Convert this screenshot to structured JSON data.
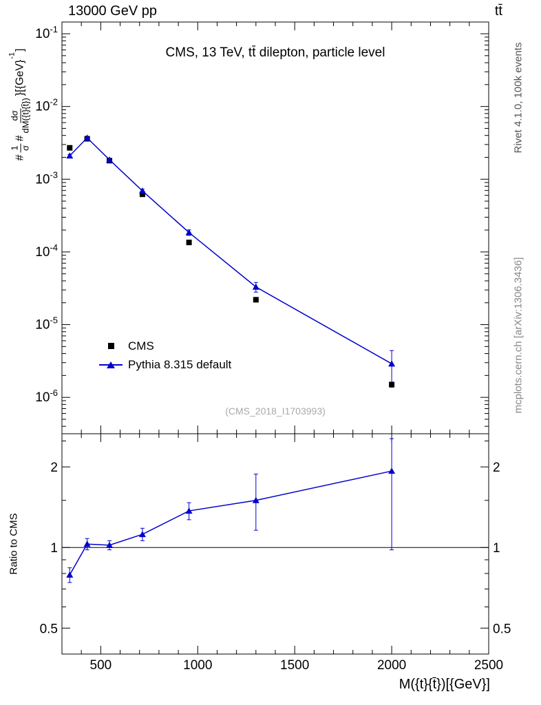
{
  "header": {
    "left": "13000 GeV pp",
    "right": "tt̄"
  },
  "title": "CMS, 13 TeV, tt̄ dilepton, particle level",
  "watermark": "(CMS_2018_I1703993)",
  "right_margin": {
    "top_label": "Rivet 4.1.0,  100k events",
    "bottom_label": "mcplots.cern.ch [arXiv:1306.3436]"
  },
  "ylabel_top": {
    "hash1": "#",
    "frac1_num": "1",
    "frac1_den": "σ",
    "hash2": "#",
    "frac2_num": "dσ",
    "frac2_den": "dM({t}{t̄})",
    "close": "}[{GeV}",
    "sup": "-1",
    "end": "]"
  },
  "ylabel_ratio": "Ratio to CMS",
  "xlabel": "M({t}{t̄})[{GeV}]",
  "legend": {
    "items": [
      {
        "label": "CMS",
        "marker": "square",
        "color": "#000000"
      },
      {
        "label": "Pythia 8.315 default",
        "marker": "triangle",
        "color": "#0000cc"
      }
    ]
  },
  "colors": {
    "cms": "#000000",
    "pythia": "#0000cc",
    "frame": "#000000",
    "watermark": "#a9a9a9"
  },
  "chart_data": {
    "type": "line",
    "title": "CMS, 13 TeV, tt̄ dilepton, particle level",
    "xlabel": "M({t}{t̄})[{GeV}]",
    "ylabel": "1/σ dσ/dM({t}{t̄}) [GeV⁻¹]",
    "ratio_ylabel": "Ratio to CMS",
    "x": [
      340,
      430,
      545,
      715,
      955,
      1300,
      2000
    ],
    "series": [
      {
        "name": "CMS",
        "marker": "square",
        "color": "#000000",
        "values": [
          0.0027,
          0.0036,
          0.0018,
          0.00062,
          0.000135,
          2.2e-05,
          1.5e-06
        ],
        "yerr": [
          0.00012,
          0.00012,
          6e-05,
          2.5e-05,
          7e-06,
          1.5e-06,
          1.2e-07
        ]
      },
      {
        "name": "Pythia 8.315 default",
        "marker": "triangle",
        "color": "#0000cc",
        "line": true,
        "values": [
          0.0021,
          0.0037,
          0.00185,
          0.00069,
          0.000185,
          3.3e-05,
          2.9e-06
        ],
        "yerr": [
          9e-05,
          0.0001,
          6e-05,
          4e-05,
          1.6e-05,
          5e-06,
          1.5e-06
        ]
      }
    ],
    "ratio": {
      "label": "Ratio to CMS",
      "reference": 1,
      "values": [
        0.79,
        1.03,
        1.02,
        1.12,
        1.37,
        1.5,
        1.93
      ],
      "err_lo": [
        0.05,
        0.05,
        0.04,
        0.06,
        0.1,
        0.34,
        0.95
      ],
      "err_hi": [
        0.05,
        0.05,
        0.04,
        0.06,
        0.1,
        0.38,
        0.62
      ]
    },
    "axes": {
      "x": {
        "min": 300,
        "max": 2500,
        "major_ticks": [
          500,
          1000,
          1500,
          2000,
          2500
        ],
        "minor_step": 100,
        "major_step": 500
      },
      "y_top": {
        "scale": "log",
        "min": 3.16e-07,
        "max": 0.145,
        "decade_exponents": [
          -6,
          -5,
          -4,
          -3,
          -2,
          -1
        ]
      },
      "y_ratio": {
        "scale": "log",
        "min": 0.4,
        "max": 2.66,
        "major_ticks": [
          0.5,
          1,
          2
        ],
        "minor_ticks": [
          0.4,
          0.6,
          0.7,
          0.8,
          0.9,
          1.5,
          2.5
        ]
      }
    }
  }
}
